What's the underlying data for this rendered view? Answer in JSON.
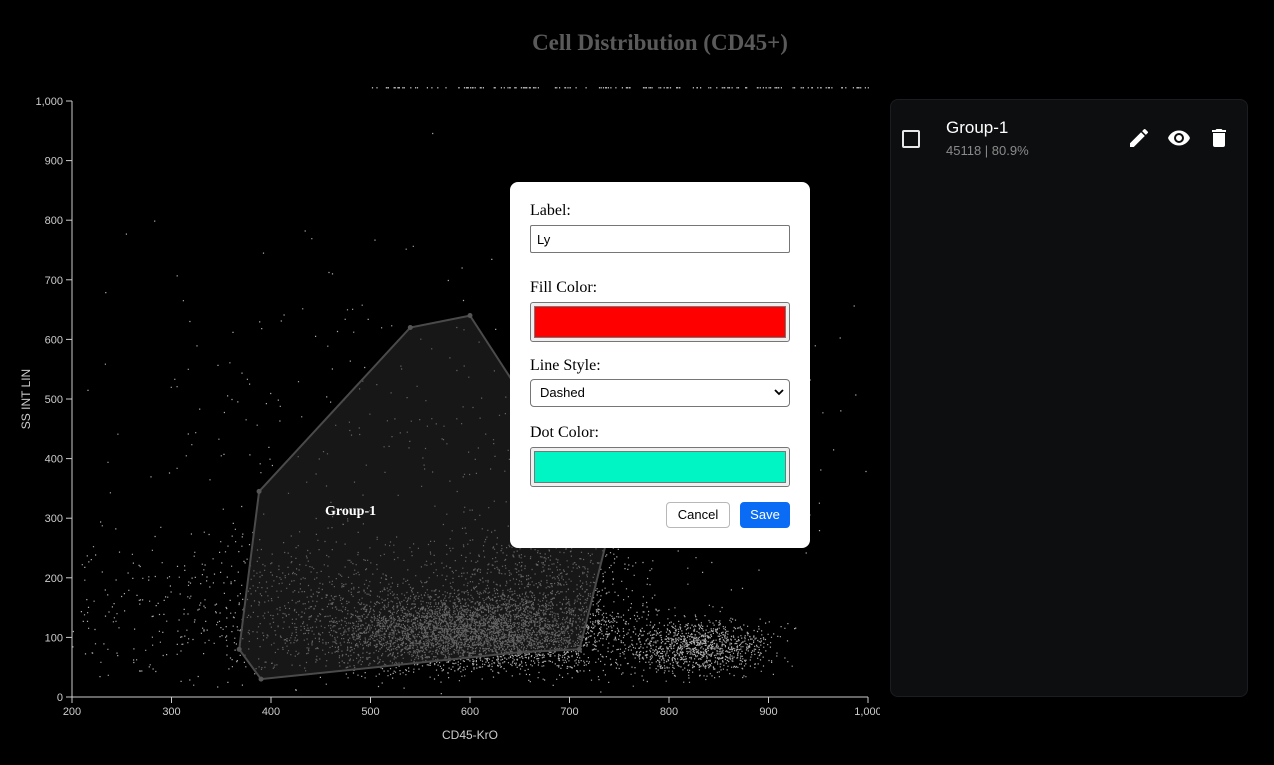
{
  "chart_data": {
    "type": "scatter",
    "title": "Cell Distribution (CD45+)",
    "xlabel": "CD45-KrO",
    "ylabel": "SS INT LIN",
    "xlim": [
      200,
      1000
    ],
    "ylim": [
      0,
      1000
    ],
    "x_ticks": [
      "200",
      "300",
      "400",
      "500",
      "600",
      "700",
      "800",
      "900",
      "1,000"
    ],
    "y_ticks": [
      "0",
      "100",
      "200",
      "300",
      "400",
      "500",
      "600",
      "700",
      "800",
      "900",
      "1,000"
    ],
    "grid": false,
    "point_color": "#d9d9d9",
    "clusters": [
      {
        "center": [
          600,
          110
        ],
        "spread": [
          70,
          30
        ],
        "count": 3800
      },
      {
        "center": [
          670,
          170
        ],
        "spread": [
          50,
          60
        ],
        "count": 900
      },
      {
        "center": [
          830,
          85
        ],
        "spread": [
          35,
          22
        ],
        "count": 1100
      },
      {
        "center": [
          470,
          150
        ],
        "spread": [
          140,
          60
        ],
        "count": 1200
      },
      {
        "center": [
          620,
          400
        ],
        "spread": [
          200,
          200
        ],
        "count": 500
      }
    ],
    "gate": {
      "name": "Group-1",
      "vertices": [
        [
          388,
          345
        ],
        [
          540,
          620
        ],
        [
          600,
          640
        ],
        [
          740,
          280
        ],
        [
          710,
          80
        ],
        [
          650,
          75
        ],
        [
          390,
          30
        ],
        [
          368,
          80
        ]
      ],
      "fill": "#2a2a2a",
      "stroke": "#4a4a4a"
    }
  },
  "gate_list": [
    {
      "name": "Group-1",
      "stats": "45118 | 80.9%"
    }
  ],
  "icons": {
    "edit": "pencil-icon",
    "view": "eye-icon",
    "delete": "trash-icon",
    "checkbox": "checkbox-icon"
  },
  "dialog": {
    "label_caption": "Label:",
    "label_value": "Ly",
    "fill_color_caption": "Fill Color:",
    "fill_color": "#ff0000",
    "line_style_caption": "Line Style:",
    "line_style_value": "Dashed",
    "dot_color_caption": "Dot Color:",
    "dot_color": "#00f5c4",
    "cancel_label": "Cancel",
    "save_label": "Save"
  }
}
